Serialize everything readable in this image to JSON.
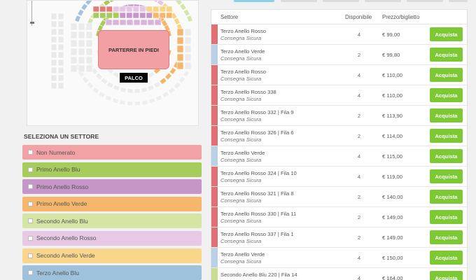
{
  "seat_map": {
    "parterre_label": "PARTERRE IN PIEDI",
    "stage_label": "PALCO",
    "colors": {
      "red": "#e37b7b",
      "lightred": "#f2a0a3",
      "green": "#a8c95e",
      "lightgreen": "#d4e6a8",
      "purple": "#c795c9",
      "orange": "#f5b66c",
      "yellow": "#f7d486",
      "blue": "#a2c3dd",
      "pink": "#e6c6e4"
    }
  },
  "sector_selector": {
    "title": "SELEZIONA UN SETTORE",
    "items": [
      {
        "label": "Non Numerato",
        "color": "#f2a2a5"
      },
      {
        "label": "Primo Anello Blu",
        "color": "#a6cc5c"
      },
      {
        "label": "Primo Anello Rosso",
        "color": "#c796c8"
      },
      {
        "label": "Primo Anello Verde",
        "color": "#f6b76c"
      },
      {
        "label": "Secondo Anello Blu",
        "color": "#d3e6a4"
      },
      {
        "label": "Secondo Anello Rosso",
        "color": "#e7c8e5"
      },
      {
        "label": "Secondo Anello Verde",
        "color": "#f9d68c"
      },
      {
        "label": "Terzo Anello Blu",
        "color": "#9fc2dc"
      }
    ]
  },
  "offers_table": {
    "headers": {
      "sector": "Settore",
      "available": "Disponibile",
      "price": "Prezzo/biglietto"
    },
    "buy_label": "Acquista",
    "rows": [
      {
        "sector": "Terzo Anello Rosso",
        "note": "Consegna Sicura",
        "available": "4",
        "price": "€ 99,00",
        "color": "#df7174"
      },
      {
        "sector": "Terzo Anello Verde",
        "note": "Consegna Sicura",
        "available": "2",
        "price": "€ 99,80",
        "color": "#b9d1e6"
      },
      {
        "sector": "Terzo Anello Rosso",
        "note": "Consegna Sicura",
        "available": "4",
        "price": "€ 110,00",
        "color": "#df7174"
      },
      {
        "sector": "Terzo Anello Rosso 338",
        "note": "Consegna Sicura",
        "available": "4",
        "price": "€ 110,00",
        "color": "#df7174"
      },
      {
        "sector": "Terzo Anello Rosso 332 | Fila 9",
        "note": "Consegna Sicura",
        "available": "2",
        "price": "€ 113,90",
        "color": "#df7174"
      },
      {
        "sector": "Terzo Anello Rosso 326 | Fila 6",
        "note": "Consegna Sicura",
        "available": "2",
        "price": "€ 114,00",
        "color": "#df7174"
      },
      {
        "sector": "Terzo Anello Verde",
        "note": "Consegna Sicura",
        "available": "4",
        "price": "€ 115,00",
        "color": "#b9d1e6"
      },
      {
        "sector": "Terzo Anello Rosso 324 | Fila 10",
        "note": "Consegna Sicura",
        "available": "4",
        "price": "€ 119,00",
        "color": "#df7174"
      },
      {
        "sector": "Terzo Anello Rosso 321 | Fila 8",
        "note": "Consegna Sicura",
        "available": "2",
        "price": "€ 140,00",
        "color": "#df7174"
      },
      {
        "sector": "Terzo Anello Rosso 330 | Fila 11",
        "note": "Consegna Sicura",
        "available": "2",
        "price": "€ 149,00",
        "color": "#df7174"
      },
      {
        "sector": "Terzo Anello Rosso 337 | Fila 1",
        "note": "Consegna Sicura",
        "available": "2",
        "price": "€ 149,00",
        "color": "#df7174"
      },
      {
        "sector": "Terzo Anello Verde",
        "note": "Consegna Sicura",
        "available": "4",
        "price": "€ 150,00",
        "color": "#b9d1e6"
      },
      {
        "sector": "Secondo Anello Blu 220 | Fila 14",
        "note": "",
        "available": "4",
        "price": "€ 164,00",
        "color": "#c9df8f"
      }
    ]
  }
}
